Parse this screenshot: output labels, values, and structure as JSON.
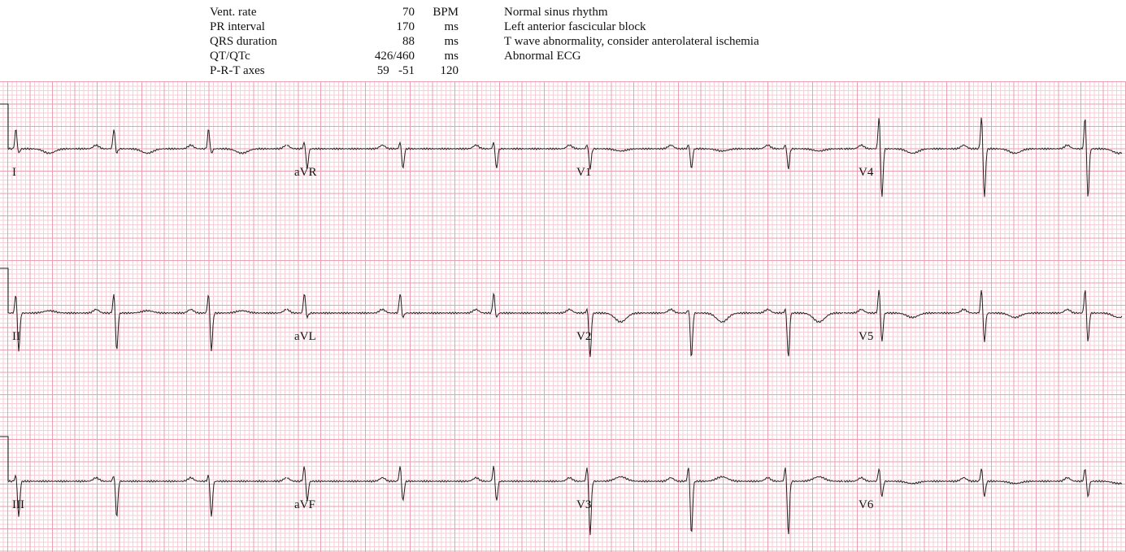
{
  "measurements": [
    {
      "label": "Vent. rate",
      "value": "70",
      "unit": "BPM"
    },
    {
      "label": "PR interval",
      "value": "170",
      "unit": "ms"
    },
    {
      "label": "QRS duration",
      "value": "88",
      "unit": "ms"
    },
    {
      "label": "QT/QTc",
      "value": "426/460",
      "unit": "ms"
    },
    {
      "label": "P-R-T axes",
      "value": "59   -51",
      "unit": "120"
    }
  ],
  "interpretation": [
    "Normal sinus rhythm",
    "Left anterior fascicular block",
    "T wave abnormality, consider anterolateral ischemia",
    "Abnormal ECG"
  ],
  "colors": {
    "grid_major": "#eb9fb0",
    "grid_minor": "#f7cfd7",
    "trace": "#222222"
  },
  "chart_data": {
    "type": "line",
    "paper_speed_mm_per_s": 25,
    "gain_mm_per_mv": 10,
    "calibration_mv": 1,
    "column_duration_s": 2.5,
    "beat_times_s": [
      0.07,
      0.95,
      1.8,
      2.66,
      3.52,
      4.36,
      5.2,
      6.11,
      6.98,
      7.82,
      8.74,
      9.67
    ],
    "rows": [
      [
        {
          "lead": "I",
          "r": 0.45,
          "s": 0.1,
          "t": -0.1
        },
        {
          "lead": "aVR",
          "r": 0.15,
          "s": 0.45,
          "t": 0.0
        },
        {
          "lead": "V1",
          "r": 0.1,
          "s": 0.45,
          "t": -0.05
        },
        {
          "lead": "V4",
          "r": 0.75,
          "s": 1.1,
          "t": -0.1
        }
      ],
      [
        {
          "lead": "II",
          "r": 0.45,
          "s": 0.85,
          "t": 0.05
        },
        {
          "lead": "aVL",
          "r": 0.45,
          "s": 0.1,
          "t": 0.0
        },
        {
          "lead": "V2",
          "r": 0.1,
          "s": 1.0,
          "t": -0.2
        },
        {
          "lead": "V5",
          "r": 0.55,
          "s": 0.65,
          "t": -0.1
        }
      ],
      [
        {
          "lead": "III",
          "r": 0.15,
          "s": 0.8,
          "t": 0.0
        },
        {
          "lead": "aVF",
          "r": 0.35,
          "s": 0.45,
          "t": 0.0
        },
        {
          "lead": "V3",
          "r": 0.35,
          "s": 1.2,
          "t": 0.1
        },
        {
          "lead": "V6",
          "r": 0.3,
          "s": 0.35,
          "t": -0.05
        }
      ]
    ]
  }
}
